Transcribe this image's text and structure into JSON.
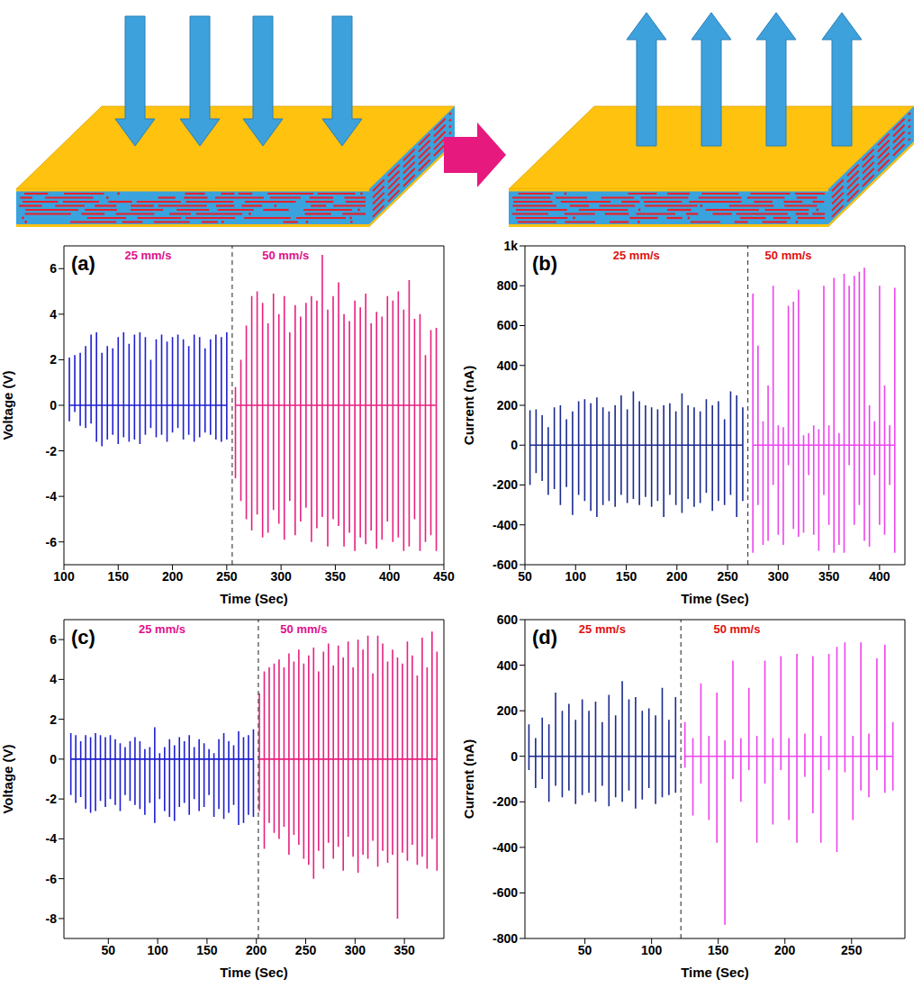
{
  "chart_data": [
    {
      "type": "line",
      "panel": "(a)",
      "x_label": "Time (Sec)",
      "y_label": "Voltage (V)",
      "xlim": [
        100,
        450
      ],
      "xticks": [
        100,
        150,
        200,
        250,
        300,
        350,
        400,
        450
      ],
      "ylim": [
        -7,
        7
      ],
      "yticks": [
        -6,
        -4,
        -2,
        0,
        2,
        4,
        6
      ],
      "divider": 255,
      "series": [
        {
          "name": "25 mm/s",
          "color": "#1f1fcf",
          "x": [
            105,
            110,
            115,
            120,
            125,
            130,
            135,
            140,
            145,
            150,
            155,
            160,
            165,
            170,
            175,
            180,
            185,
            190,
            195,
            200,
            205,
            210,
            215,
            220,
            225,
            230,
            235,
            240,
            245,
            250
          ],
          "peaks": [
            2.1,
            2.2,
            2.3,
            2.6,
            3.1,
            3.2,
            2.3,
            2.6,
            2.5,
            3.0,
            3.2,
            2.7,
            3.1,
            3.2,
            3.0,
            2.0,
            2.9,
            3.1,
            2.8,
            3.0,
            3.1,
            2.9,
            2.6,
            3.1,
            3.0,
            2.5,
            2.9,
            3.1,
            3.0,
            3.2
          ],
          "troughs": [
            -0.7,
            -0.3,
            -0.9,
            -1.0,
            -0.8,
            -1.6,
            -1.8,
            -1.5,
            -1.3,
            -1.7,
            -1.4,
            -1.6,
            -1.5,
            -1.7,
            -1.3,
            -1.0,
            -1.4,
            -1.3,
            -1.6,
            -1.2,
            -1.0,
            -1.5,
            -1.3,
            -1.6,
            -1.4,
            -1.2,
            -1.3,
            -1.5,
            -1.6,
            -1.5
          ]
        },
        {
          "name": "50 mm/s",
          "color": "#e8207f",
          "x": [
            258,
            263,
            268,
            273,
            278,
            283,
            288,
            293,
            298,
            303,
            308,
            313,
            318,
            323,
            328,
            333,
            338,
            343,
            348,
            353,
            358,
            363,
            368,
            373,
            378,
            383,
            388,
            393,
            398,
            403,
            408,
            413,
            418,
            423,
            428,
            433,
            438,
            443
          ],
          "peaks": [
            0.8,
            2.0,
            3.5,
            4.8,
            5.0,
            4.5,
            3.6,
            4.9,
            4.0,
            4.8,
            3.2,
            4.4,
            3.9,
            4.5,
            4.8,
            4.6,
            6.6,
            4.2,
            4.8,
            5.4,
            4.0,
            3.7,
            4.6,
            4.3,
            4.9,
            3.6,
            4.1,
            3.9,
            4.8,
            4.6,
            5.0,
            4.2,
            5.5,
            3.8,
            4.0,
            2.2,
            3.3,
            3.4
          ],
          "troughs": [
            -3.2,
            -4.2,
            -5.0,
            -5.5,
            -4.8,
            -5.8,
            -5.6,
            -4.6,
            -5.2,
            -5.9,
            -4.2,
            -5.7,
            -5.1,
            -4.5,
            -6.0,
            -5.4,
            -4.9,
            -6.2,
            -5.0,
            -5.3,
            -6.2,
            -5.6,
            -6.4,
            -5.8,
            -6.1,
            -5.5,
            -6.3,
            -5.9,
            -5.1,
            -6.0,
            -5.8,
            -6.4,
            -6.2,
            -5.0,
            -6.4,
            -6.0,
            -5.7,
            -6.4
          ]
        }
      ]
    },
    {
      "type": "line",
      "panel": "(b)",
      "x_label": "Time (Sec)",
      "y_label": "Current (nA)",
      "xlim": [
        50,
        425
      ],
      "xticks": [
        50,
        100,
        150,
        200,
        250,
        300,
        350,
        400
      ],
      "ylim": [
        -600,
        1000
      ],
      "yticks": [
        -600,
        -400,
        -200,
        0,
        200,
        400,
        600,
        800,
        {
          "value": 1000,
          "label": "1k"
        }
      ],
      "divider": 270,
      "series": [
        {
          "name": "25 mm/s",
          "color": "#1a2a8f",
          "x": [
            55,
            61,
            67,
            73,
            79,
            85,
            91,
            97,
            103,
            109,
            115,
            121,
            127,
            133,
            139,
            145,
            151,
            157,
            163,
            169,
            175,
            181,
            187,
            193,
            199,
            205,
            211,
            217,
            223,
            229,
            235,
            241,
            247,
            253,
            259,
            265
          ],
          "peaks": [
            175,
            180,
            150,
            90,
            190,
            200,
            130,
            170,
            220,
            230,
            210,
            240,
            190,
            170,
            200,
            250,
            180,
            270,
            220,
            200,
            190,
            180,
            200,
            210,
            170,
            260,
            200,
            190,
            170,
            230,
            200,
            220,
            130,
            270,
            250,
            190
          ],
          "troughs": [
            -200,
            -140,
            -180,
            -250,
            -220,
            -300,
            -210,
            -350,
            -250,
            -280,
            -330,
            -360,
            -300,
            -280,
            -310,
            -250,
            -290,
            -270,
            -300,
            -260,
            -310,
            -280,
            -360,
            -250,
            -300,
            -340,
            -270,
            -310,
            -290,
            -240,
            -330,
            -280,
            -300,
            -250,
            -360,
            -280
          ]
        },
        {
          "name": "50 mm/s",
          "color": "#ee44ee",
          "x": [
            275,
            280,
            285,
            290,
            295,
            300,
            305,
            310,
            315,
            320,
            325,
            330,
            335,
            340,
            345,
            350,
            355,
            360,
            365,
            370,
            375,
            380,
            385,
            390,
            395,
            400,
            405,
            410,
            415
          ],
          "peaks": [
            760,
            500,
            120,
            300,
            800,
            100,
            90,
            700,
            720,
            780,
            50,
            60,
            100,
            80,
            800,
            100,
            840,
            60,
            860,
            800,
            850,
            870,
            890,
            200,
            120,
            800,
            300,
            100,
            790
          ],
          "troughs": [
            -540,
            -300,
            -500,
            -480,
            -200,
            -450,
            -500,
            -100,
            -420,
            -460,
            -440,
            -150,
            -450,
            -530,
            -250,
            -400,
            -540,
            -500,
            -540,
            -100,
            -400,
            -300,
            -480,
            -510,
            -150,
            -400,
            -450,
            -200,
            -540
          ]
        }
      ]
    },
    {
      "type": "line",
      "panel": "(c)",
      "x_label": "Time (Sec)",
      "y_label": "Voltage (V)",
      "xlim": [
        5,
        390
      ],
      "xticks": [
        50,
        100,
        150,
        200,
        250,
        300,
        350
      ],
      "ylim": [
        -9,
        7
      ],
      "yticks": [
        -8,
        -6,
        -4,
        -2,
        0,
        2,
        4,
        6
      ],
      "divider": 202,
      "series": [
        {
          "name": "25 mm/s",
          "color": "#1f1fcf",
          "x": [
            12,
            17,
            22,
            27,
            32,
            37,
            42,
            47,
            52,
            57,
            62,
            67,
            72,
            77,
            82,
            87,
            92,
            97,
            102,
            107,
            112,
            117,
            122,
            127,
            132,
            137,
            142,
            147,
            152,
            157,
            162,
            167,
            172,
            177,
            182,
            187,
            192,
            197
          ],
          "peaks": [
            1.3,
            1.2,
            0.9,
            1.2,
            1.1,
            1.3,
            1.2,
            1.1,
            1.2,
            1.0,
            0.8,
            0.6,
            0.9,
            1.1,
            0.9,
            0.5,
            0.6,
            1.6,
            0.3,
            0.6,
            1.0,
            0.7,
            1.1,
            0.9,
            1.2,
            0.6,
            1.0,
            0.8,
            0.5,
            0.3,
            1.0,
            1.3,
            0.9,
            0.7,
            1.4,
            1.1,
            1.2,
            1.5
          ],
          "troughs": [
            -1.8,
            -2.2,
            -1.9,
            -2.5,
            -2.7,
            -2.6,
            -2.1,
            -2.4,
            -2.0,
            -2.3,
            -2.6,
            -1.8,
            -2.1,
            -2.3,
            -2.5,
            -2.8,
            -2.2,
            -3.2,
            -2.0,
            -2.6,
            -2.9,
            -3.1,
            -2.4,
            -2.2,
            -2.8,
            -2.0,
            -2.6,
            -2.4,
            -1.8,
            -2.9,
            -2.5,
            -3.0,
            -2.7,
            -2.3,
            -3.3,
            -3.2,
            -2.8,
            -2.9
          ]
        },
        {
          "name": "50 mm/s",
          "color": "#e8207f",
          "x": [
            203,
            208,
            213,
            218,
            223,
            228,
            233,
            238,
            243,
            248,
            253,
            258,
            263,
            268,
            273,
            278,
            283,
            288,
            293,
            298,
            303,
            308,
            313,
            318,
            323,
            328,
            333,
            338,
            343,
            348,
            353,
            358,
            363,
            368,
            373,
            378,
            383
          ],
          "peaks": [
            3.3,
            4.4,
            4.6,
            4.8,
            5.0,
            4.6,
            5.3,
            4.9,
            5.5,
            4.8,
            5.2,
            5.6,
            4.4,
            5.4,
            5.8,
            4.7,
            5.7,
            5.1,
            5.9,
            4.6,
            6.0,
            5.5,
            6.2,
            4.3,
            6.2,
            5.8,
            4.9,
            5.5,
            5.1,
            4.8,
            5.9,
            5.2,
            4.2,
            6.1,
            4.6,
            6.4,
            5.4
          ],
          "troughs": [
            -2.6,
            -4.5,
            -3.2,
            -3.7,
            -4.0,
            -3.4,
            -4.8,
            -3.8,
            -4.3,
            -5.0,
            -5.3,
            -6.0,
            -4.6,
            -5.5,
            -4.2,
            -5.0,
            -4.4,
            -5.6,
            -3.9,
            -4.9,
            -5.7,
            -4.8,
            -5.0,
            -4.1,
            -5.4,
            -4.6,
            -5.2,
            -4.8,
            -8.0,
            -4.7,
            -5.1,
            -4.3,
            -5.3,
            -4.9,
            -5.5,
            -4.0,
            -5.6
          ]
        }
      ]
    },
    {
      "type": "line",
      "panel": "(d)",
      "x_label": "Time (Sec)",
      "y_label": "Current (nA)",
      "xlim": [
        5,
        290
      ],
      "xticks": [
        50,
        100,
        150,
        200,
        250
      ],
      "ylim": [
        -800,
        600
      ],
      "yticks": [
        -800,
        -600,
        -400,
        -200,
        0,
        200,
        400,
        600
      ],
      "divider": 122,
      "series": [
        {
          "name": "25 mm/s",
          "color": "#1a2a8f",
          "x": [
            8,
            13,
            18,
            23,
            28,
            33,
            38,
            43,
            48,
            53,
            58,
            63,
            68,
            73,
            78,
            83,
            88,
            93,
            98,
            103,
            108,
            113,
            118
          ],
          "peaks": [
            140,
            80,
            170,
            140,
            280,
            200,
            230,
            160,
            250,
            200,
            240,
            150,
            270,
            180,
            330,
            250,
            260,
            200,
            210,
            180,
            300,
            160,
            260
          ],
          "troughs": [
            -60,
            -140,
            -100,
            -200,
            -130,
            -180,
            -150,
            -210,
            -170,
            -160,
            -200,
            -130,
            -220,
            -180,
            -200,
            -150,
            -230,
            -190,
            -140,
            -210,
            -180,
            -170,
            -160
          ]
        },
        {
          "name": "50 mm/s",
          "color": "#ee44ee",
          "x": [
            125,
            131,
            137,
            143,
            149,
            155,
            161,
            167,
            173,
            179,
            185,
            191,
            197,
            203,
            209,
            215,
            221,
            227,
            233,
            239,
            245,
            251,
            257,
            263,
            269,
            275,
            281
          ],
          "peaks": [
            150,
            80,
            320,
            90,
            280,
            70,
            420,
            80,
            300,
            90,
            420,
            80,
            440,
            80,
            450,
            100,
            440,
            90,
            450,
            480,
            500,
            90,
            500,
            100,
            430,
            490,
            150
          ],
          "troughs": [
            -50,
            -260,
            -120,
            -280,
            -380,
            -740,
            -100,
            -200,
            -60,
            -380,
            -120,
            -300,
            -60,
            -280,
            -380,
            -90,
            -250,
            -380,
            -60,
            -420,
            -70,
            -280,
            -150,
            -180,
            -60,
            -160,
            -150
          ]
        }
      ]
    }
  ]
}
